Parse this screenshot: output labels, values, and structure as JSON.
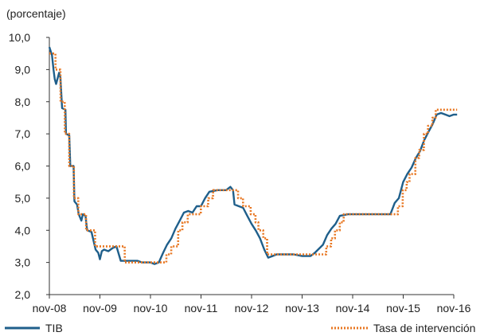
{
  "chart_data": {
    "type": "line",
    "unit_label": "(porcentaje)",
    "x_ticks": [
      "nov-08",
      "nov-09",
      "nov-10",
      "nov-11",
      "nov-12",
      "nov-13",
      "nov-14",
      "nov-15",
      "nov-16"
    ],
    "y_ticks": [
      "2,0",
      "3,0",
      "4,0",
      "5,0",
      "6,0",
      "7,0",
      "8,0",
      "9,0",
      "10,0"
    ],
    "ylim": [
      2,
      10
    ],
    "x_range": [
      "2008-11",
      "2016-11"
    ],
    "grid": false,
    "legend_position": "bottom",
    "series": [
      {
        "name": "TIB",
        "color": "#1f5f8b",
        "style": "solid",
        "points": [
          [
            "2008-11-01",
            9.7
          ],
          [
            "2008-11-20",
            9.45
          ],
          [
            "2008-12-01",
            9.0
          ],
          [
            "2008-12-10",
            8.7
          ],
          [
            "2008-12-20",
            8.55
          ],
          [
            "2009-01-01",
            8.75
          ],
          [
            "2009-01-10",
            8.9
          ],
          [
            "2009-01-20",
            8.75
          ],
          [
            "2009-02-01",
            7.8
          ],
          [
            "2009-02-25",
            7.75
          ],
          [
            "2009-03-01",
            7.0
          ],
          [
            "2009-03-25",
            6.95
          ],
          [
            "2009-04-01",
            6.0
          ],
          [
            "2009-04-25",
            6.0
          ],
          [
            "2009-05-01",
            4.9
          ],
          [
            "2009-05-20",
            4.8
          ],
          [
            "2009-06-01",
            4.5
          ],
          [
            "2009-06-20",
            4.3
          ],
          [
            "2009-07-01",
            4.5
          ],
          [
            "2009-07-20",
            4.45
          ],
          [
            "2009-08-01",
            4.0
          ],
          [
            "2009-09-01",
            3.95
          ],
          [
            "2009-10-01",
            3.4
          ],
          [
            "2009-10-20",
            3.3
          ],
          [
            "2009-11-01",
            3.1
          ],
          [
            "2009-11-15",
            3.35
          ],
          [
            "2009-12-01",
            3.4
          ],
          [
            "2010-01-01",
            3.35
          ],
          [
            "2010-02-01",
            3.45
          ],
          [
            "2010-03-01",
            3.5
          ],
          [
            "2010-04-01",
            3.05
          ],
          [
            "2010-06-01",
            3.05
          ],
          [
            "2010-08-01",
            3.05
          ],
          [
            "2010-09-01",
            3.0
          ],
          [
            "2010-10-01",
            3.0
          ],
          [
            "2010-11-01",
            3.0
          ],
          [
            "2010-12-01",
            2.95
          ],
          [
            "2011-01-01",
            3.0
          ],
          [
            "2011-02-01",
            3.3
          ],
          [
            "2011-03-01",
            3.55
          ],
          [
            "2011-04-01",
            3.75
          ],
          [
            "2011-05-01",
            4.05
          ],
          [
            "2011-06-01",
            4.3
          ],
          [
            "2011-07-01",
            4.55
          ],
          [
            "2011-08-01",
            4.6
          ],
          [
            "2011-09-01",
            4.55
          ],
          [
            "2011-10-01",
            4.75
          ],
          [
            "2011-11-01",
            4.75
          ],
          [
            "2011-12-01",
            5.0
          ],
          [
            "2012-01-01",
            5.2
          ],
          [
            "2012-03-01",
            5.25
          ],
          [
            "2012-05-01",
            5.25
          ],
          [
            "2012-06-01",
            5.35
          ],
          [
            "2012-06-20",
            5.25
          ],
          [
            "2012-07-01",
            4.8
          ],
          [
            "2012-08-01",
            4.75
          ],
          [
            "2012-09-01",
            4.7
          ],
          [
            "2012-10-01",
            4.45
          ],
          [
            "2012-11-01",
            4.2
          ],
          [
            "2012-12-01",
            4.0
          ],
          [
            "2013-01-01",
            3.75
          ],
          [
            "2013-02-01",
            3.4
          ],
          [
            "2013-03-01",
            3.15
          ],
          [
            "2013-04-01",
            3.2
          ],
          [
            "2013-05-01",
            3.25
          ],
          [
            "2013-07-01",
            3.25
          ],
          [
            "2013-09-01",
            3.25
          ],
          [
            "2013-11-01",
            3.2
          ],
          [
            "2014-01-01",
            3.2
          ],
          [
            "2014-02-01",
            3.3
          ],
          [
            "2014-04-01",
            3.55
          ],
          [
            "2014-05-01",
            3.85
          ],
          [
            "2014-06-01",
            4.05
          ],
          [
            "2014-07-01",
            4.2
          ],
          [
            "2014-08-01",
            4.45
          ],
          [
            "2014-10-01",
            4.5
          ],
          [
            "2015-01-01",
            4.5
          ],
          [
            "2015-04-01",
            4.5
          ],
          [
            "2015-06-01",
            4.5
          ],
          [
            "2015-08-01",
            4.5
          ],
          [
            "2015-09-01",
            4.85
          ],
          [
            "2015-10-01",
            5.0
          ],
          [
            "2015-11-01",
            5.5
          ],
          [
            "2015-12-01",
            5.75
          ],
          [
            "2016-01-01",
            5.95
          ],
          [
            "2016-02-01",
            6.25
          ],
          [
            "2016-03-01",
            6.45
          ],
          [
            "2016-04-01",
            6.8
          ],
          [
            "2016-05-01",
            7.05
          ],
          [
            "2016-06-01",
            7.3
          ],
          [
            "2016-07-01",
            7.6
          ],
          [
            "2016-08-01",
            7.65
          ],
          [
            "2016-09-01",
            7.6
          ],
          [
            "2016-10-01",
            7.55
          ],
          [
            "2016-11-01",
            7.6
          ],
          [
            "2016-11-25",
            7.6
          ]
        ]
      },
      {
        "name": "Tasa de intervención",
        "color": "#e87722",
        "style": "dotted",
        "points": [
          [
            "2008-11-01",
            9.5
          ],
          [
            "2008-12-15",
            9.5
          ],
          [
            "2008-12-16",
            9.0
          ],
          [
            "2009-01-20",
            9.0
          ],
          [
            "2009-01-21",
            8.0
          ],
          [
            "2009-02-20",
            8.0
          ],
          [
            "2009-02-21",
            7.0
          ],
          [
            "2009-03-24",
            7.0
          ],
          [
            "2009-03-25",
            6.0
          ],
          [
            "2009-04-27",
            6.0
          ],
          [
            "2009-04-28",
            5.0
          ],
          [
            "2009-05-29",
            5.0
          ],
          [
            "2009-05-30",
            4.5
          ],
          [
            "2009-07-24",
            4.5
          ],
          [
            "2009-07-25",
            4.0
          ],
          [
            "2009-09-27",
            4.0
          ],
          [
            "2009-09-28",
            3.5
          ],
          [
            "2010-04-29",
            3.5
          ],
          [
            "2010-04-30",
            3.0
          ],
          [
            "2011-02-24",
            3.0
          ],
          [
            "2011-02-25",
            3.25
          ],
          [
            "2011-03-31",
            3.25
          ],
          [
            "2011-04-01",
            3.5
          ],
          [
            "2011-05-20",
            3.5
          ],
          [
            "2011-05-21",
            4.0
          ],
          [
            "2011-06-20",
            4.0
          ],
          [
            "2011-06-21",
            4.25
          ],
          [
            "2011-07-28",
            4.25
          ],
          [
            "2011-07-29",
            4.5
          ],
          [
            "2011-10-31",
            4.5
          ],
          [
            "2011-11-01",
            4.75
          ],
          [
            "2011-12-23",
            4.75
          ],
          [
            "2011-12-24",
            5.0
          ],
          [
            "2012-01-27",
            5.0
          ],
          [
            "2012-01-28",
            5.25
          ],
          [
            "2012-07-26",
            5.25
          ],
          [
            "2012-07-27",
            5.0
          ],
          [
            "2012-08-31",
            5.0
          ],
          [
            "2012-09-01",
            4.75
          ],
          [
            "2012-10-25",
            4.75
          ],
          [
            "2012-10-26",
            4.5
          ],
          [
            "2012-11-29",
            4.5
          ],
          [
            "2012-11-30",
            4.25
          ],
          [
            "2012-12-20",
            4.25
          ],
          [
            "2012-12-21",
            4.0
          ],
          [
            "2013-01-24",
            4.0
          ],
          [
            "2013-01-25",
            3.75
          ],
          [
            "2013-02-21",
            3.75
          ],
          [
            "2013-02-22",
            3.25
          ],
          [
            "2013-03-21",
            3.25
          ],
          [
            "2013-03-22",
            3.25
          ],
          [
            "2014-04-24",
            3.25
          ],
          [
            "2014-04-25",
            3.5
          ],
          [
            "2014-05-29",
            3.5
          ],
          [
            "2014-05-30",
            3.75
          ],
          [
            "2014-06-26",
            3.75
          ],
          [
            "2014-06-27",
            4.0
          ],
          [
            "2014-07-31",
            4.0
          ],
          [
            "2014-08-01",
            4.25
          ],
          [
            "2014-08-28",
            4.25
          ],
          [
            "2014-08-29",
            4.5
          ],
          [
            "2015-09-24",
            4.5
          ],
          [
            "2015-09-25",
            4.75
          ],
          [
            "2015-10-29",
            4.75
          ],
          [
            "2015-10-30",
            5.25
          ],
          [
            "2015-11-26",
            5.25
          ],
          [
            "2015-11-27",
            5.5
          ],
          [
            "2015-12-17",
            5.5
          ],
          [
            "2015-12-18",
            5.75
          ],
          [
            "2016-01-28",
            5.75
          ],
          [
            "2016-01-29",
            6.25
          ],
          [
            "2016-02-25",
            6.25
          ],
          [
            "2016-02-26",
            6.5
          ],
          [
            "2016-03-30",
            6.5
          ],
          [
            "2016-03-31",
            7.0
          ],
          [
            "2016-04-28",
            7.0
          ],
          [
            "2016-04-29",
            7.25
          ],
          [
            "2016-05-30",
            7.25
          ],
          [
            "2016-05-31",
            7.5
          ],
          [
            "2016-06-23",
            7.5
          ],
          [
            "2016-06-24",
            7.75
          ],
          [
            "2016-07-28",
            7.75
          ],
          [
            "2016-07-29",
            7.75
          ],
          [
            "2016-11-25",
            7.75
          ]
        ]
      }
    ]
  }
}
